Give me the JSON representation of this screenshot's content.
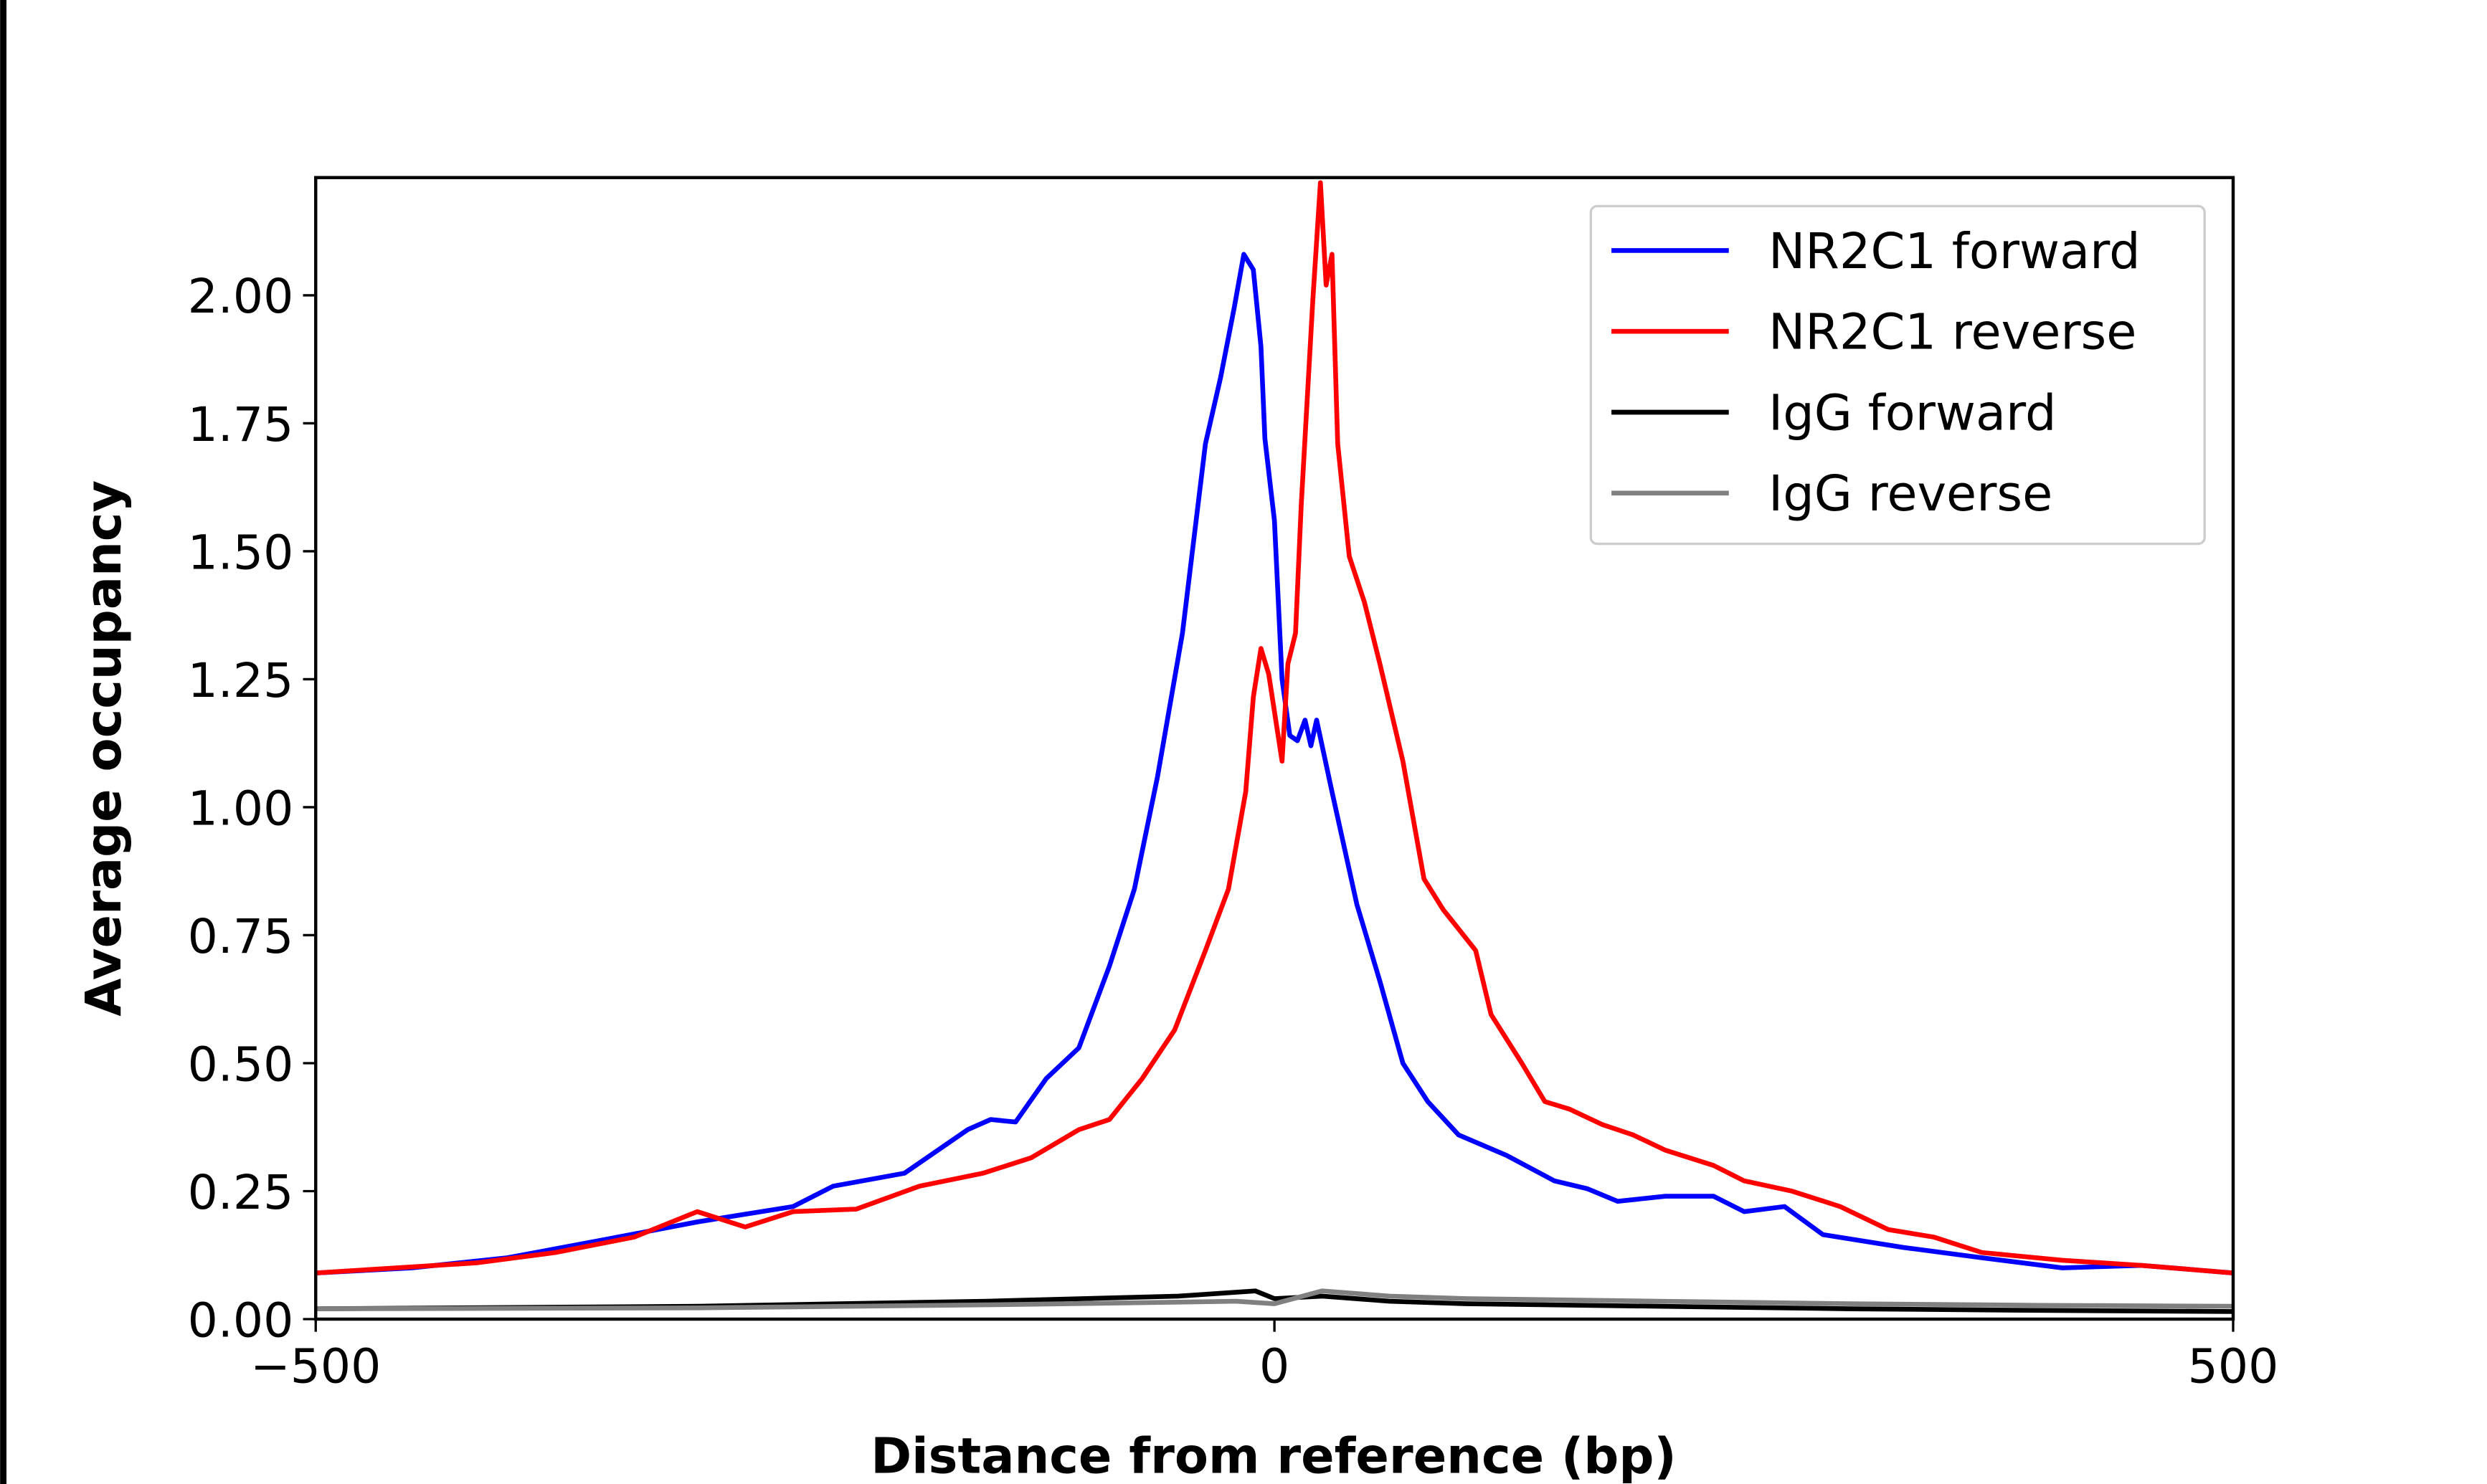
{
  "chart_data": {
    "type": "line",
    "title": "",
    "xlabel": "Distance from reference (bp)",
    "ylabel": "Average occupancy",
    "xlim": [
      -500,
      500
    ],
    "ylim": [
      0,
      2.23
    ],
    "xticks": [
      -500,
      0,
      500
    ],
    "xtick_labels": [
      "−500",
      "0",
      "500"
    ],
    "yticks": [
      0,
      0.25,
      0.5,
      0.75,
      1.0,
      1.25,
      1.5,
      1.75,
      2.0
    ],
    "ytick_labels": [
      "0.00",
      "0.25",
      "0.50",
      "0.75",
      "1.00",
      "1.25",
      "1.50",
      "1.75",
      "2.00"
    ],
    "grid": false,
    "legend_position": "top-right",
    "series": [
      {
        "name": "NR2C1 forward",
        "color": "#0000ff",
        "x": [
          -500,
          -450,
          -400,
          -350,
          -301,
          -251,
          -230,
          -193,
          -160,
          -148,
          -135,
          -119,
          -102,
          -86,
          -73,
          -61,
          -48,
          -36,
          -28,
          -21,
          -16,
          -11,
          -7,
          -5,
          0,
          4,
          8,
          12,
          16,
          19,
          22,
          30,
          43,
          55,
          67,
          80,
          96,
          121,
          146,
          163,
          179,
          204,
          229,
          245,
          266,
          286,
          328,
          369,
          411,
          452,
          500
        ],
        "y": [
          0.09,
          0.1,
          0.12,
          0.155,
          0.19,
          0.22,
          0.26,
          0.285,
          0.37,
          0.39,
          0.385,
          0.47,
          0.53,
          0.69,
          0.84,
          1.06,
          1.34,
          1.71,
          1.84,
          1.975,
          2.08,
          2.05,
          1.9,
          1.72,
          1.56,
          1.25,
          1.14,
          1.13,
          1.17,
          1.12,
          1.17,
          1.03,
          0.81,
          0.66,
          0.5,
          0.425,
          0.36,
          0.32,
          0.27,
          0.255,
          0.23,
          0.24,
          0.24,
          0.21,
          0.22,
          0.165,
          0.14,
          0.12,
          0.1,
          0.105,
          0.09
        ]
      },
      {
        "name": "NR2C1 reverse",
        "color": "#ff0000",
        "x": [
          -500,
          -458,
          -416,
          -375,
          -334,
          -301,
          -276,
          -251,
          -218,
          -185,
          -152,
          -127,
          -102,
          -86,
          -69,
          -52,
          -36,
          -24,
          -15,
          -11,
          -7,
          -3,
          4,
          7,
          11,
          14,
          20,
          24,
          27,
          30,
          33,
          39,
          47,
          55,
          67,
          78,
          88,
          105,
          113,
          129,
          141,
          154,
          171,
          187,
          204,
          229,
          245,
          270,
          295,
          320,
          344,
          369,
          411,
          452,
          500
        ],
        "y": [
          0.09,
          0.1,
          0.11,
          0.13,
          0.16,
          0.21,
          0.18,
          0.21,
          0.215,
          0.26,
          0.285,
          0.315,
          0.37,
          0.39,
          0.47,
          0.565,
          0.72,
          0.84,
          1.03,
          1.215,
          1.31,
          1.26,
          1.09,
          1.28,
          1.34,
          1.59,
          1.99,
          2.22,
          2.02,
          2.08,
          1.71,
          1.49,
          1.4,
          1.28,
          1.09,
          0.86,
          0.8,
          0.72,
          0.595,
          0.5,
          0.425,
          0.41,
          0.38,
          0.36,
          0.33,
          0.3,
          0.27,
          0.25,
          0.22,
          0.175,
          0.16,
          0.13,
          0.115,
          0.105,
          0.09
        ]
      },
      {
        "name": "IgG forward",
        "color": "#000000",
        "x": [
          -500,
          -300,
          -150,
          -50,
          -10,
          0,
          25,
          60,
          100,
          200,
          300,
          400,
          500
        ],
        "y": [
          0.02,
          0.025,
          0.035,
          0.045,
          0.055,
          0.04,
          0.045,
          0.035,
          0.03,
          0.025,
          0.02,
          0.017,
          0.015
        ]
      },
      {
        "name": "IgG reverse",
        "color": "#808080",
        "x": [
          -500,
          -300,
          -150,
          -50,
          -20,
          0,
          25,
          60,
          100,
          200,
          300,
          400,
          500
        ],
        "y": [
          0.02,
          0.022,
          0.028,
          0.033,
          0.035,
          0.03,
          0.055,
          0.045,
          0.04,
          0.035,
          0.03,
          0.027,
          0.025
        ]
      }
    ]
  }
}
